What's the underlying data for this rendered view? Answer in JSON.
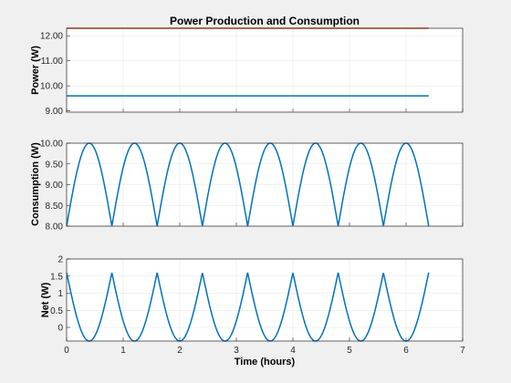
{
  "chart_data": [
    {
      "type": "line",
      "title": "Power Production and Consumption",
      "ylabel": "Power (W)",
      "xlim": [
        0,
        7
      ],
      "ylim": [
        8.95,
        12.3
      ],
      "yticks": [
        "9.00",
        "10.00",
        "11.00",
        "12.00"
      ],
      "grid": true,
      "series": [
        {
          "color": "#d95319",
          "x": [
            0,
            6.4
          ],
          "y": [
            12.3,
            12.3
          ]
        },
        {
          "color": "#0072bd",
          "x": [
            0,
            6.4
          ],
          "y": [
            9.6,
            9.6
          ]
        }
      ]
    },
    {
      "type": "line",
      "ylabel": "Consumption (W)",
      "xlim": [
        0,
        7
      ],
      "ylim": [
        8.0,
        10.0
      ],
      "yticks": [
        "8.00",
        "8.50",
        "9.00",
        "9.50",
        "10.00"
      ],
      "grid": true,
      "series": [
        {
          "color": "#0072bd",
          "formula": "8 + 2*|sin(pi*t/0.8)|",
          "x": [
            0,
            6.4
          ]
        }
      ]
    },
    {
      "type": "line",
      "ylabel": "Net (W)",
      "xlabel": "Time (hours)",
      "xlim": [
        0,
        7
      ],
      "ylim": [
        -0.4,
        2
      ],
      "xticks": [
        "0",
        "1",
        "2",
        "3",
        "4",
        "5",
        "6",
        "7"
      ],
      "yticks": [
        "0",
        "0.5",
        "1",
        "1.5",
        "2"
      ],
      "grid": true,
      "series": [
        {
          "color": "#0072bd",
          "formula": "1.6 - 2*|sin(pi*t/0.8)|",
          "x": [
            0,
            6.4
          ]
        }
      ]
    }
  ]
}
